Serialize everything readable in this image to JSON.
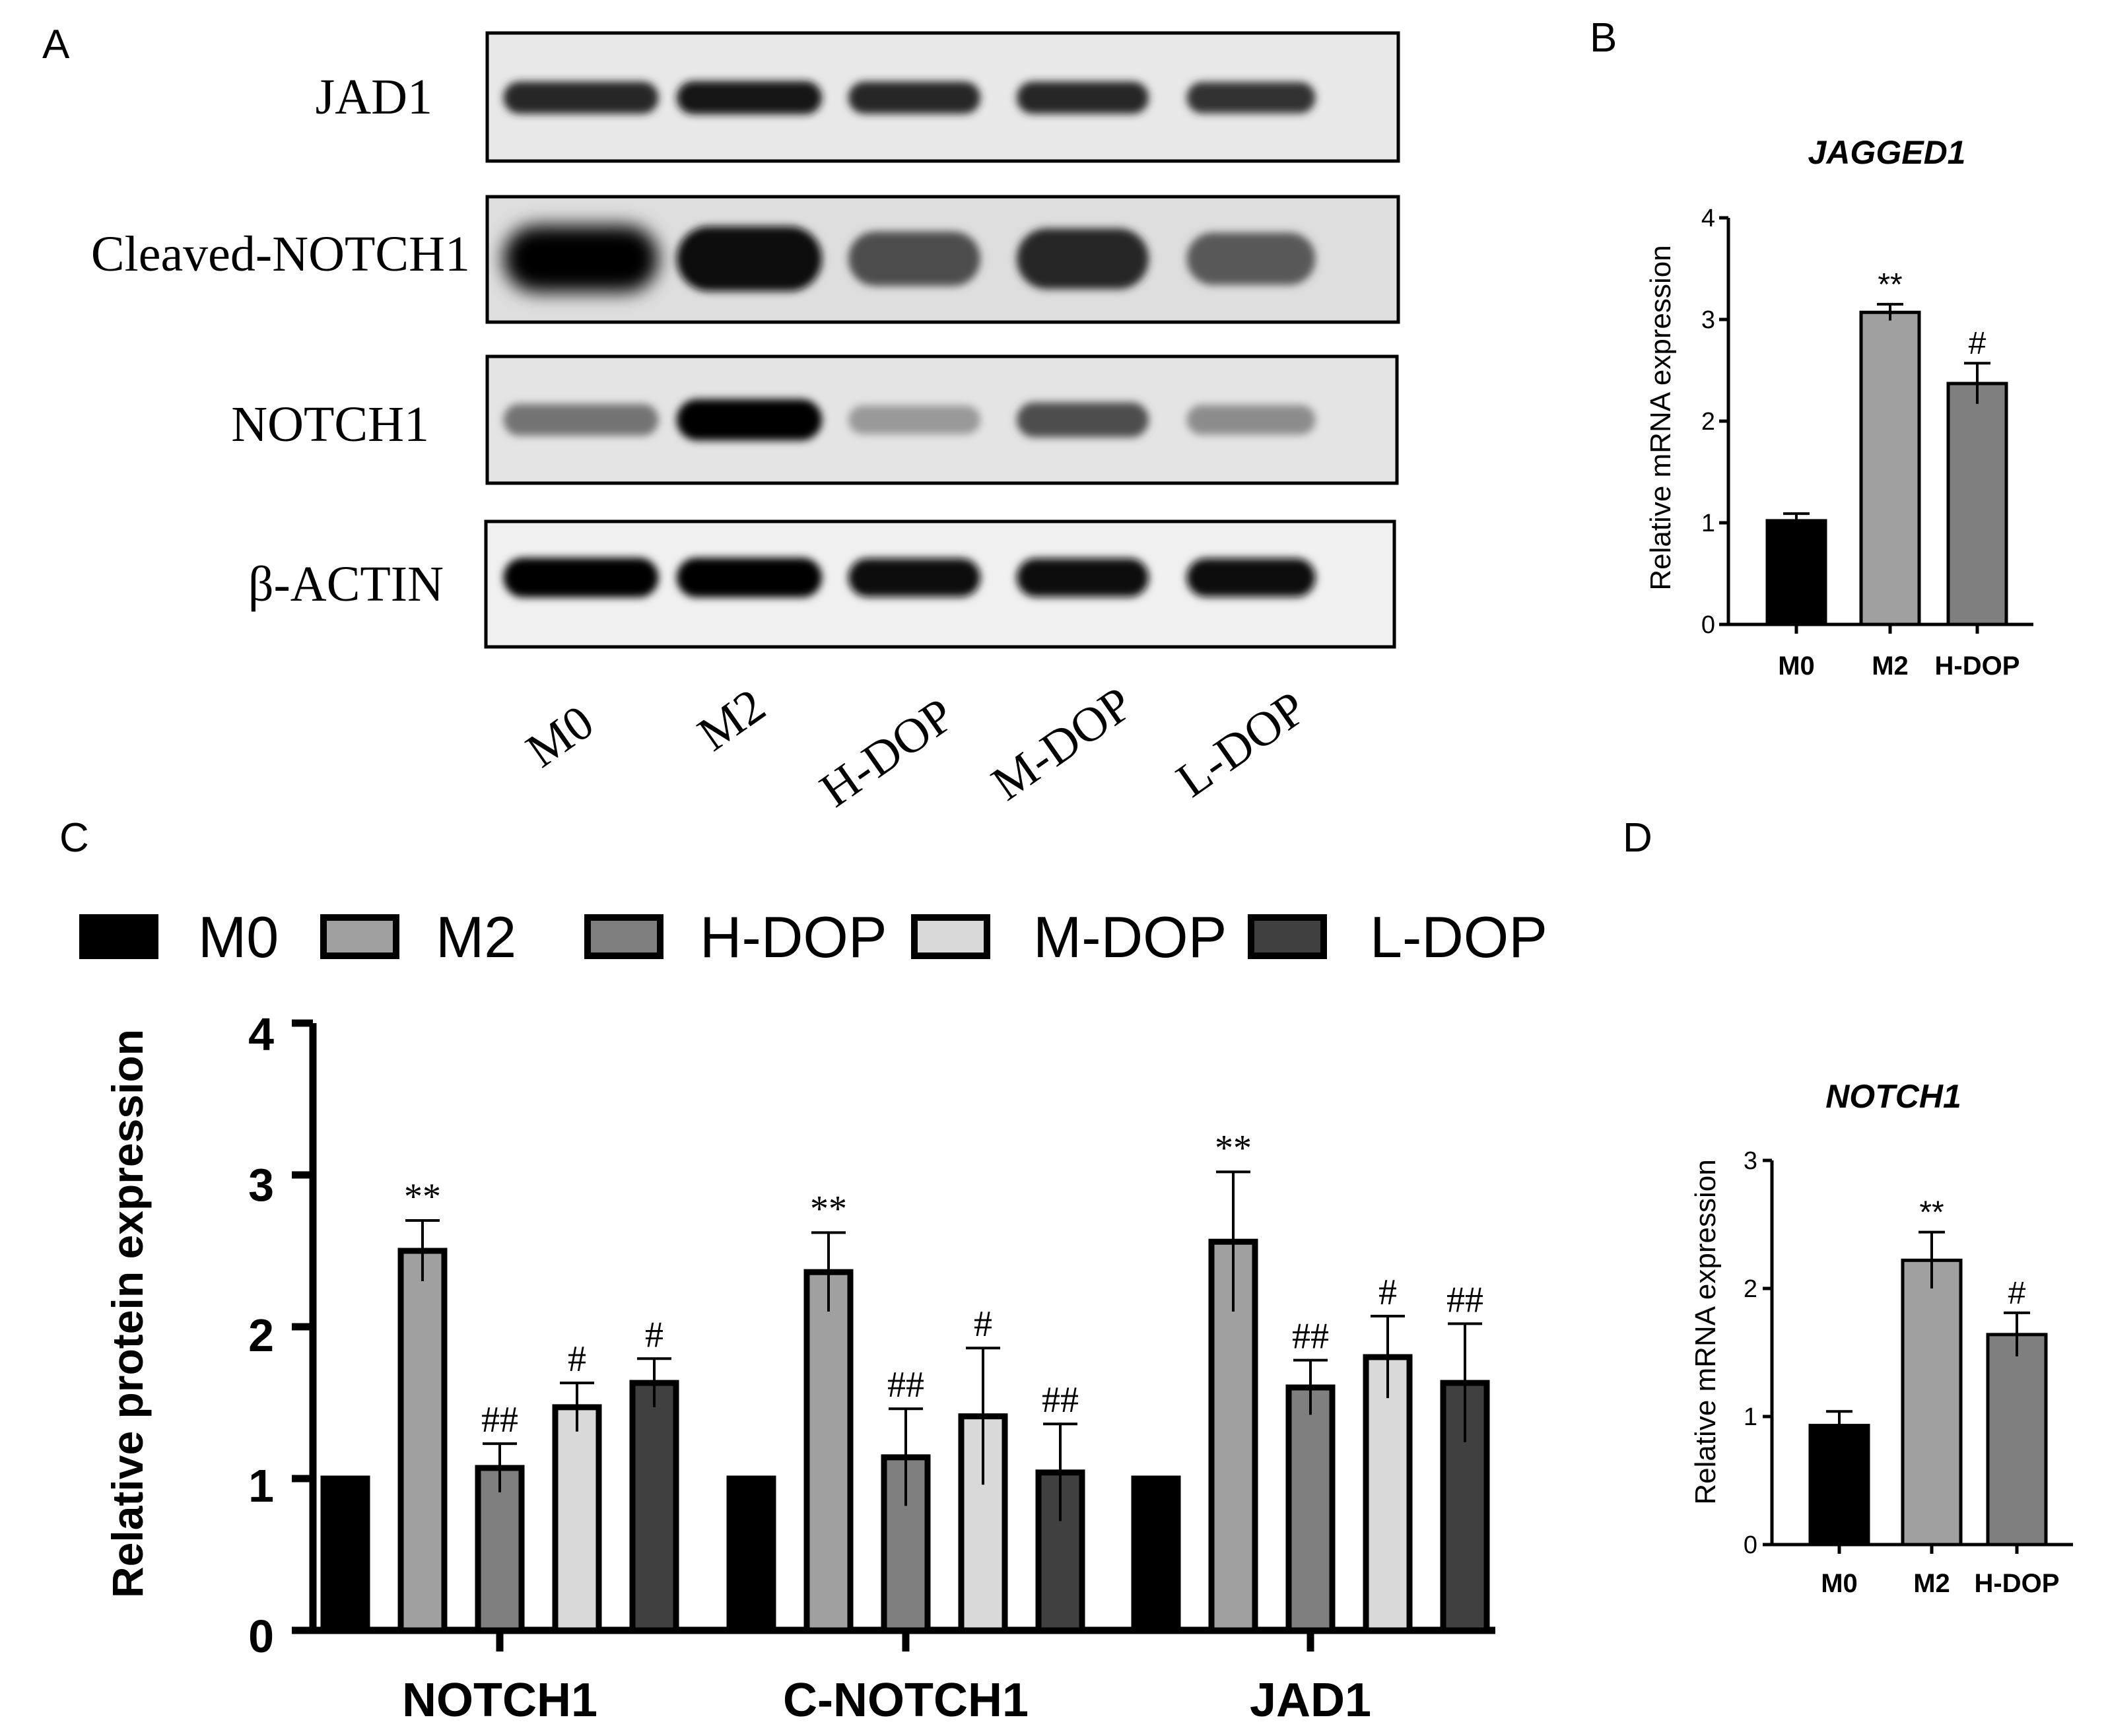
{
  "panels": {
    "a": {
      "letter": "A"
    },
    "b": {
      "letter": "B"
    },
    "c": {
      "letter": "C"
    },
    "d": {
      "letter": "D"
    }
  },
  "blot": {
    "rows": [
      "JAD1",
      "Cleaved-NOTCH1",
      "NOTCH1",
      "β-ACTIN"
    ],
    "lanes": [
      "M0",
      "M2",
      "H-DOP",
      "M-DOP",
      "L-DOP"
    ],
    "band_intensity": [
      [
        0.85,
        0.9,
        0.85,
        0.85,
        0.8
      ],
      [
        1.0,
        0.95,
        0.7,
        0.85,
        0.65
      ],
      [
        0.55,
        1.0,
        0.4,
        0.7,
        0.45
      ],
      [
        1.0,
        1.0,
        0.95,
        0.95,
        0.95
      ]
    ]
  },
  "colors": {
    "M0": "#000000",
    "M2": "#a0a0a0",
    "H-DOP": "#7f7f7f",
    "M-DOP": "#d9d9d9",
    "L-DOP": "#404040"
  },
  "chart_data": [
    {
      "id": "B",
      "type": "bar",
      "title": "JAGGED1",
      "ylabel": "Relative mRNA expression",
      "ylim": [
        0,
        4
      ],
      "yticks": [
        "0",
        "1",
        "2",
        "3",
        "4"
      ],
      "categories": [
        "M0",
        "M2",
        "H-DOP"
      ],
      "values": [
        1.02,
        3.07,
        2.37
      ],
      "errors": [
        0.07,
        0.08,
        0.2
      ],
      "annotations": [
        "",
        "**",
        "#"
      ],
      "colors": [
        "#000000",
        "#a0a0a0",
        "#7f7f7f"
      ]
    },
    {
      "id": "C",
      "type": "bar",
      "title": "",
      "ylabel": "Relative protein expression",
      "ylim": [
        0,
        4
      ],
      "yticks": [
        "0",
        "1",
        "2",
        "3",
        "4"
      ],
      "categories": [
        "NOTCH1",
        "C-NOTCH1",
        "JAD1"
      ],
      "legend": "top",
      "series": [
        {
          "name": "M0",
          "color": "#000000",
          "values": [
            1.0,
            1.0,
            1.0
          ],
          "errors": [
            0,
            0,
            0
          ],
          "annotations": [
            "",
            "",
            ""
          ]
        },
        {
          "name": "M2",
          "color": "#a0a0a0",
          "values": [
            2.5,
            2.36,
            2.56
          ],
          "errors": [
            0.2,
            0.26,
            0.46
          ],
          "annotations": [
            "**",
            "**",
            "**"
          ]
        },
        {
          "name": "H-DOP",
          "color": "#7f7f7f",
          "values": [
            1.07,
            1.14,
            1.6
          ],
          "errors": [
            0.16,
            0.32,
            0.18
          ],
          "annotations": [
            "##",
            "##",
            "##"
          ]
        },
        {
          "name": "M-DOP",
          "color": "#d9d9d9",
          "values": [
            1.47,
            1.41,
            1.8
          ],
          "errors": [
            0.16,
            0.45,
            0.27
          ],
          "annotations": [
            "#",
            "#",
            "#"
          ]
        },
        {
          "name": "L-DOP",
          "color": "#404040",
          "values": [
            1.63,
            1.04,
            1.63
          ],
          "errors": [
            0.16,
            0.32,
            0.39
          ],
          "annotations": [
            "#",
            "##",
            "##"
          ]
        }
      ]
    },
    {
      "id": "D",
      "type": "bar",
      "title": "NOTCH1",
      "ylabel": "Relative mRNA expression",
      "ylim": [
        0,
        3
      ],
      "yticks": [
        "0",
        "1",
        "2",
        "3"
      ],
      "categories": [
        "M0",
        "M2",
        "H-DOP"
      ],
      "values": [
        0.93,
        2.22,
        1.64
      ],
      "errors": [
        0.11,
        0.22,
        0.17
      ],
      "annotations": [
        "",
        "**",
        "#"
      ],
      "colors": [
        "#000000",
        "#a0a0a0",
        "#7f7f7f"
      ]
    }
  ]
}
